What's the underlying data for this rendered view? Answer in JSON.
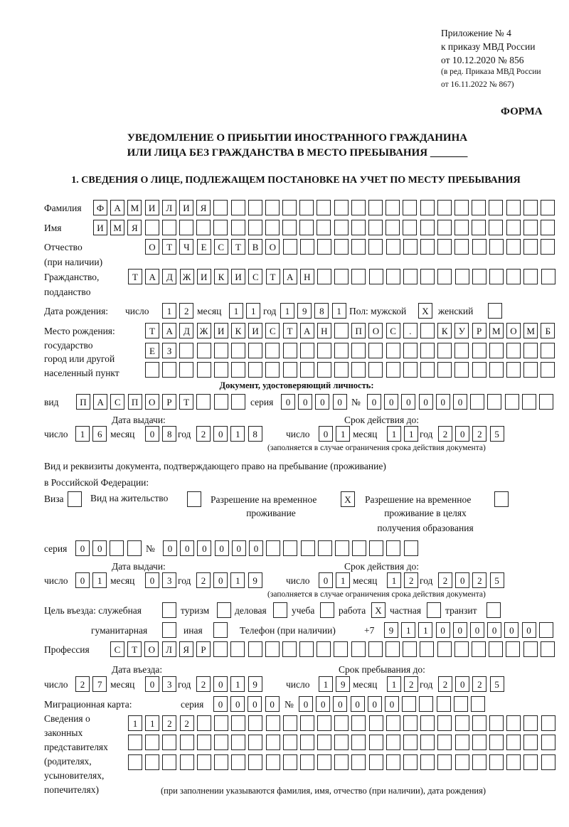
{
  "header": {
    "line1": "Приложение № 4",
    "line2": "к приказу МВД России",
    "line3": "от 10.12.2020 № 856",
    "line4": "(в ред. Приказа МВД России",
    "line5": "от 16.11.2022 № 867)",
    "form": "ФОРМА",
    "title1": "УВЕДОМЛЕНИЕ О ПРИБЫТИИ ИНОСТРАННОГО ГРАЖДАНИНА",
    "title2": "ИЛИ ЛИЦА БЕЗ ГРАЖДАНСТВА В МЕСТО ПРЕБЫВАНИЯ _______",
    "section1": "1. СВЕДЕНИЯ О ЛИЦЕ, ПОДЛЕЖАЩЕМ ПОСТАНОВКЕ НА УЧЕТ ПО МЕСТУ ПРЕБЫВАНИЯ"
  },
  "labels": {
    "surname": "Фамилия",
    "name": "Имя",
    "patronymic": "Отчество",
    "patronymic2": "(при наличии)",
    "citizenship": "Гражданство,",
    "citizenship2": "подданство",
    "birth_date": "Дата рождения:",
    "day": "число",
    "month": "месяц",
    "year": "год",
    "sex": "Пол: мужской",
    "female": "женский",
    "birthplace1": "Место рождения:",
    "birthplace2": "государство",
    "birthplace3": "город или другой",
    "birthplace4": "населенный пункт",
    "id_doc": "Документ, удостоверяющий личность:",
    "kind": "вид",
    "series": "серия",
    "number": "№",
    "issue_date": "Дата выдачи:",
    "valid_until": "Срок действия до:",
    "valid_note": "(заполняется в случае ограничения срока действия документа)",
    "right_doc1": "Вид и реквизиты документа, подтверждающего право на пребывание (проживание)",
    "right_doc2": "в Российской Федерации:",
    "visa": "Виза",
    "residence": "Вид на жительство",
    "temp1": "Разрешение на временное",
    "temp2": "проживание",
    "edu1": "Разрешение на временное",
    "edu2": "проживание в целях",
    "edu3": "получения образования",
    "purpose": "Цель въезда: служебная",
    "tourism": "туризм",
    "business": "деловая",
    "study": "учеба",
    "work": "работа",
    "private": "частная",
    "transit": "транзит",
    "humanitarian": "гуманитарная",
    "other": "иная",
    "phone": "Телефон (при наличии)",
    "phone_prefix": "+7",
    "profession": "Профессия",
    "entry_date": "Дата въезда:",
    "stay_until": "Срок пребывания до:",
    "migration_card": "Миграционная карта:",
    "reps1": "Сведения о",
    "reps2": "законных",
    "reps3": "представителях",
    "reps4": "(родителях,",
    "reps5": "усыновителях,",
    "reps6": "попечителях)",
    "reps_note": "(при заполнении указываются фамилия, имя, отчество (при наличии), дата рождения)"
  },
  "person": {
    "surname": "ФАМИЛИЯ",
    "name": "ИМЯ",
    "patronymic": "ОТЧЕСТВО",
    "citizenship": "ТАДЖИКИСТАН",
    "birth_day": "12",
    "birth_month": "11",
    "birth_year": "1981",
    "sex_male": "X",
    "sex_female": "",
    "birthplace_1": "ТАДЖИКИСТАН ПОС. КУРМОМБ",
    "birthplace_2": "ЕЗ",
    "birthplace_3": ""
  },
  "id_document": {
    "kind": "ПАСПОРТ",
    "series": "0000",
    "number": "000000",
    "issue_day": "16",
    "issue_month": "08",
    "issue_year": "2018",
    "valid_day": "01",
    "valid_month": "11",
    "valid_year": "2025"
  },
  "right_document": {
    "visa": "",
    "residence": "",
    "temp_residence": "X",
    "temp_residence_edu": "",
    "series": "00",
    "number": "000000",
    "issue_day": "01",
    "issue_month": "03",
    "issue_year": "2019",
    "valid_day": "01",
    "valid_month": "12",
    "valid_year": "2025"
  },
  "purpose": {
    "service": "",
    "tourism": "",
    "business": "",
    "study": "",
    "work": "X",
    "private": "",
    "transit": "",
    "humanitarian": "",
    "other": ""
  },
  "phone": "911000000",
  "profession": "СТОЛЯР",
  "entry": {
    "day": "27",
    "month": "03",
    "year": "2019",
    "stay_day": "19",
    "stay_month": "12",
    "stay_year": "2025"
  },
  "migration_card": {
    "series": "0000",
    "number": "000000"
  },
  "representatives": {
    "line1": "1122",
    "line2": "",
    "line3": ""
  }
}
